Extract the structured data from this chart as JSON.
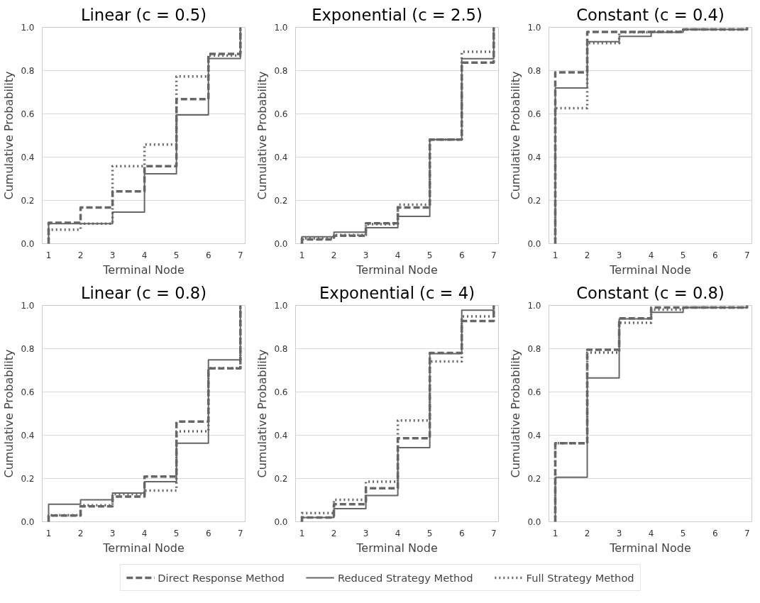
{
  "chart_data": [
    {
      "type": "step",
      "title": "Linear (c = 0.5)",
      "xlabel": "Terminal Node",
      "ylabel": "Cumulative Probability",
      "x": [
        1,
        1,
        2,
        3,
        4,
        5,
        6,
        7
      ],
      "xlim": [
        0.8,
        7.15
      ],
      "xticks": [
        1,
        2,
        3,
        4,
        5,
        6,
        7
      ],
      "ylim": [
        0,
        1
      ],
      "yticks": [
        {
          "value": 0,
          "label": "0.0"
        },
        {
          "value": 0.2,
          "label": "0.2"
        },
        {
          "value": 0.4,
          "label": "0.4"
        },
        {
          "value": 0.6,
          "label": "0.6"
        },
        {
          "value": 0.8,
          "label": "0.8"
        },
        {
          "value": 1,
          "label": "1.0"
        }
      ],
      "grid": "y",
      "series": [
        {
          "color": "#666666",
          "line_style": "dashed",
          "values": [
            0,
            0.097,
            0.167,
            0.242,
            0.358,
            0.668,
            0.877,
            1.0
          ]
        },
        {
          "color": "#666666",
          "line_style": "solid",
          "values": [
            0,
            0.093,
            0.093,
            0.146,
            0.323,
            0.595,
            0.856,
            1.0
          ]
        },
        {
          "color": "#666666",
          "line_style": "dotted",
          "values": [
            0,
            0.065,
            0.093,
            0.358,
            0.458,
            0.773,
            0.87,
            1.0
          ]
        }
      ]
    },
    {
      "type": "step",
      "title": "Exponential (c = 2.5)",
      "xlabel": "Terminal Node",
      "ylabel": "Cumulative Probability",
      "x": [
        1,
        1,
        2,
        3,
        4,
        5,
        6,
        7
      ],
      "xlim": [
        0.8,
        7.15
      ],
      "xticks": [
        1,
        2,
        3,
        4,
        5,
        6,
        7
      ],
      "ylim": [
        0,
        1
      ],
      "yticks": [
        {
          "value": 0,
          "label": "0.0"
        },
        {
          "value": 0.2,
          "label": "0.2"
        },
        {
          "value": 0.4,
          "label": "0.4"
        },
        {
          "value": 0.6,
          "label": "0.6"
        },
        {
          "value": 0.8,
          "label": "0.8"
        },
        {
          "value": 1,
          "label": "1.0"
        }
      ],
      "grid": "y",
      "series": [
        {
          "color": "#666666",
          "line_style": "dashed",
          "values": [
            0,
            0.02,
            0.037,
            0.094,
            0.167,
            0.481,
            0.837,
            1.0
          ]
        },
        {
          "color": "#666666",
          "line_style": "solid",
          "values": [
            0,
            0.032,
            0.053,
            0.074,
            0.126,
            0.481,
            0.855,
            1.0
          ]
        },
        {
          "color": "#666666",
          "line_style": "dotted",
          "values": [
            0,
            0.025,
            0.04,
            0.09,
            0.18,
            0.481,
            0.887,
            1.0
          ]
        }
      ]
    },
    {
      "type": "step",
      "title": "Constant (c = 0.4)",
      "xlabel": "Terminal Node",
      "ylabel": "Cumulative Probability",
      "x": [
        1,
        1,
        2,
        3,
        4,
        5,
        6,
        7
      ],
      "xlim": [
        0.8,
        7.15
      ],
      "xticks": [
        1,
        2,
        3,
        4,
        5,
        6,
        7
      ],
      "ylim": [
        0,
        1
      ],
      "yticks": [
        {
          "value": 0,
          "label": "0.0"
        },
        {
          "value": 0.2,
          "label": "0.2"
        },
        {
          "value": 0.4,
          "label": "0.4"
        },
        {
          "value": 0.6,
          "label": "0.6"
        },
        {
          "value": 0.8,
          "label": "0.8"
        },
        {
          "value": 1,
          "label": "1.0"
        }
      ],
      "grid": "y",
      "series": [
        {
          "color": "#666666",
          "line_style": "dashed",
          "values": [
            0,
            0.792,
            0.979,
            0.979,
            0.979,
            0.99,
            0.99,
            1.0
          ]
        },
        {
          "color": "#666666",
          "line_style": "solid",
          "values": [
            0,
            0.72,
            0.934,
            0.958,
            0.977,
            0.99,
            0.99,
            1.0
          ]
        },
        {
          "color": "#666666",
          "line_style": "dotted",
          "values": [
            0,
            0.626,
            0.927,
            0.977,
            0.98,
            0.99,
            0.99,
            1.0
          ]
        }
      ]
    },
    {
      "type": "step",
      "title": "Linear (c = 0.8)",
      "xlabel": "Terminal Node",
      "ylabel": "Cumulative Probability",
      "x": [
        1,
        1,
        2,
        3,
        4,
        5,
        6,
        7
      ],
      "xlim": [
        0.8,
        7.15
      ],
      "xticks": [
        1,
        2,
        3,
        4,
        5,
        6,
        7
      ],
      "ylim": [
        0,
        1
      ],
      "yticks": [
        {
          "value": 0,
          "label": "0.0"
        },
        {
          "value": 0.2,
          "label": "0.2"
        },
        {
          "value": 0.4,
          "label": "0.4"
        },
        {
          "value": 0.6,
          "label": "0.6"
        },
        {
          "value": 0.8,
          "label": "0.8"
        },
        {
          "value": 1,
          "label": "1.0"
        }
      ],
      "grid": "y",
      "series": [
        {
          "color": "#666666",
          "line_style": "dashed",
          "values": [
            0,
            0.029,
            0.071,
            0.116,
            0.209,
            0.463,
            0.709,
            1.0
          ]
        },
        {
          "color": "#666666",
          "line_style": "solid",
          "values": [
            0,
            0.081,
            0.102,
            0.133,
            0.185,
            0.363,
            0.748,
            1.0
          ]
        },
        {
          "color": "#666666",
          "line_style": "dotted",
          "values": [
            0,
            0.03,
            0.076,
            0.128,
            0.144,
            0.418,
            0.71,
            1.0
          ]
        }
      ]
    },
    {
      "type": "step",
      "title": "Exponential (c = 4)",
      "xlabel": "Terminal Node",
      "ylabel": "Cumulative Probability",
      "x": [
        1,
        1,
        2,
        3,
        4,
        5,
        6,
        7
      ],
      "xlim": [
        0.8,
        7.15
      ],
      "xticks": [
        1,
        2,
        3,
        4,
        5,
        6,
        7
      ],
      "ylim": [
        0,
        1
      ],
      "yticks": [
        {
          "value": 0,
          "label": "0.0"
        },
        {
          "value": 0.2,
          "label": "0.2"
        },
        {
          "value": 0.4,
          "label": "0.4"
        },
        {
          "value": 0.6,
          "label": "0.6"
        },
        {
          "value": 0.8,
          "label": "0.8"
        },
        {
          "value": 1,
          "label": "1.0"
        }
      ],
      "grid": "y",
      "series": [
        {
          "color": "#666666",
          "line_style": "dashed",
          "values": [
            0,
            0.02,
            0.081,
            0.155,
            0.386,
            0.78,
            0.928,
            1.0
          ]
        },
        {
          "color": "#666666",
          "line_style": "solid",
          "values": [
            0,
            0.02,
            0.061,
            0.121,
            0.343,
            0.777,
            0.978,
            1.0
          ]
        },
        {
          "color": "#666666",
          "line_style": "dotted",
          "values": [
            0,
            0.04,
            0.102,
            0.185,
            0.468,
            0.741,
            0.949,
            1.0
          ]
        }
      ]
    },
    {
      "type": "step",
      "title": "Constant (c = 0.8)",
      "xlabel": "Terminal Node",
      "ylabel": "Cumulative Probability",
      "x": [
        1,
        1,
        2,
        3,
        4,
        5,
        6,
        7
      ],
      "xlim": [
        0.8,
        7.15
      ],
      "xticks": [
        1,
        2,
        3,
        4,
        5,
        6,
        7
      ],
      "ylim": [
        0,
        1
      ],
      "yticks": [
        {
          "value": 0,
          "label": "0.0"
        },
        {
          "value": 0.2,
          "label": "0.2"
        },
        {
          "value": 0.4,
          "label": "0.4"
        },
        {
          "value": 0.6,
          "label": "0.6"
        },
        {
          "value": 0.8,
          "label": "0.8"
        },
        {
          "value": 1,
          "label": "1.0"
        }
      ],
      "grid": "y",
      "legend": "bottom",
      "series": [
        {
          "name": "Direct Response Method",
          "color": "#666666",
          "line_style": "dashed",
          "values": [
            0,
            0.363,
            0.795,
            0.94,
            0.99,
            0.99,
            0.99,
            1.0
          ]
        },
        {
          "name": "Reduced Strategy Method",
          "color": "#666666",
          "line_style": "solid",
          "values": [
            0,
            0.206,
            0.665,
            0.938,
            0.968,
            0.99,
            0.99,
            1.0
          ]
        },
        {
          "name": "Full Strategy Method",
          "color": "#666666",
          "line_style": "dotted",
          "values": [
            0,
            0.363,
            0.782,
            0.92,
            0.98,
            0.99,
            0.99,
            1.0
          ]
        }
      ]
    }
  ]
}
